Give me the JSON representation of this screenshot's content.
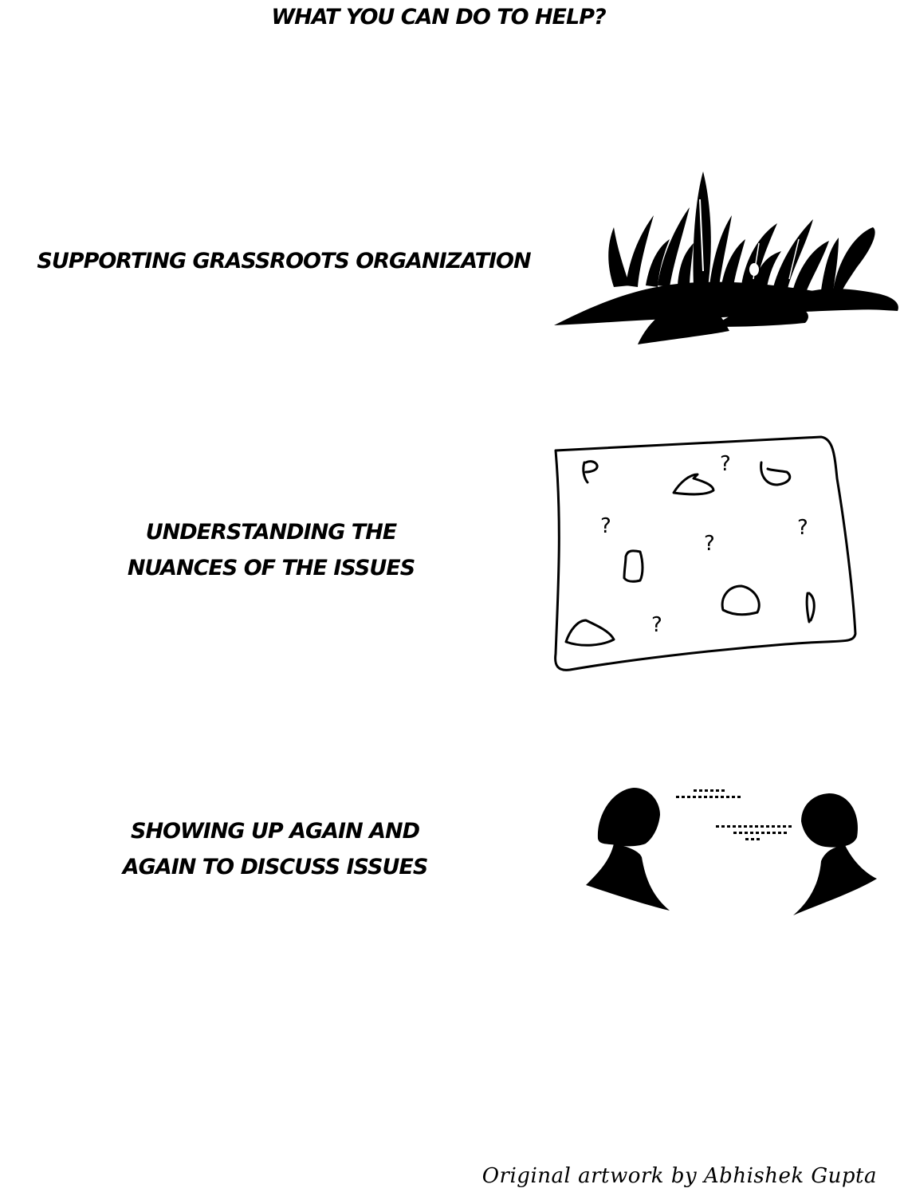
{
  "title": "WHAT YOU CAN DO TO HELP?",
  "sections": [
    {
      "lines": [
        "SUPPORTING GRASSROOTS ORGANIZATION"
      ],
      "illustration": "grass-illustration"
    },
    {
      "lines": [
        "UNDERSTANDING THE",
        "NUANCES OF THE ISSUES"
      ],
      "illustration": "map-with-question-marks-illustration"
    },
    {
      "lines": [
        "SHOWING UP AGAIN AND",
        "AGAIN TO DISCUSS ISSUES"
      ],
      "illustration": "two-people-talking-illustration"
    }
  ],
  "credit": "Original artwork by Abhishek Gupta",
  "colors": {
    "ink": "#000000",
    "background": "#ffffff"
  }
}
